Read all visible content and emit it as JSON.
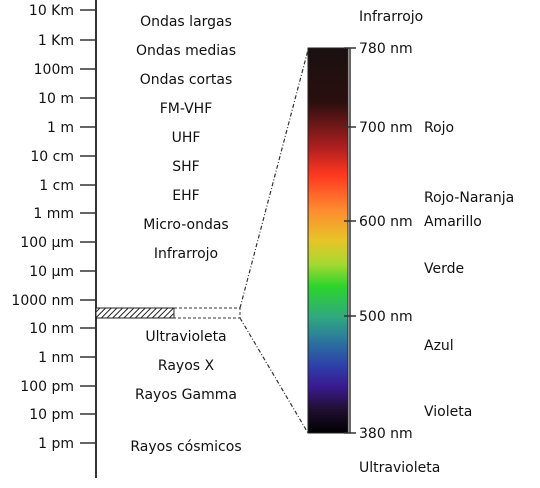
{
  "scale_labels": [
    "10 Km",
    "1 Km",
    "100m",
    "10 m",
    "1 m",
    "10 cm",
    "1 cm",
    "1 mm",
    "100 µm",
    "10 µm",
    "1000 nm",
    "10 nm",
    "1 nm",
    "100 pm",
    "10 pm",
    "1 pm"
  ],
  "band_labels": [
    "Ondas largas",
    "Ondas medias",
    "Ondas cortas",
    "FM-VHF",
    "UHF",
    "SHF",
    "EHF",
    "Micro-ondas",
    "Infrarrojo",
    "Ultravioleta",
    "Rayos X",
    "Rayos Gamma",
    "Rayos cósmicos"
  ],
  "visible_range": {
    "top_label": "Infrarrojo",
    "bottom_label": "Ultravioleta",
    "wavelength_ticks": [
      "780 nm",
      "700 nm",
      "600 nm",
      "500 nm",
      "380 nm"
    ],
    "color_names": [
      "Rojo",
      "Rojo-Naranja",
      "Amarillo",
      "Verde",
      "Azul",
      "Violeta"
    ]
  },
  "colors": {
    "axis": "#333333",
    "gradient": [
      "#1a1010",
      "#2a0f0f",
      "#b02020",
      "#ff3820",
      "#ff8a30",
      "#e8c428",
      "#a8d830",
      "#2cd42c",
      "#30a880",
      "#2a6ea0",
      "#2e3ca8",
      "#3a1a90",
      "#200e30",
      "#000000"
    ]
  }
}
